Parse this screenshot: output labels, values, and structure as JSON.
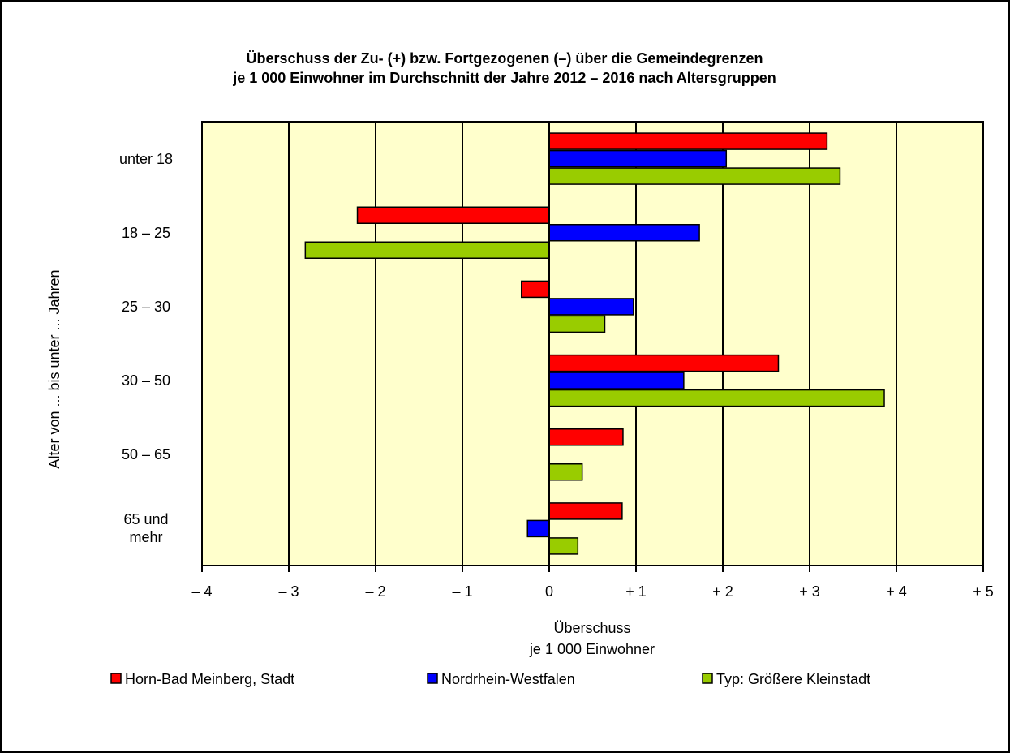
{
  "chart_data": {
    "type": "bar",
    "orientation": "horizontal",
    "title": [
      "Überschuss der Zu- (+) bzw. Fortgezogenen (–) über die Gemeindegrenzen",
      "je 1 000 Einwohner im Durchschnitt der Jahre 2012 – 2016 nach Altersgruppen"
    ],
    "x_label": [
      "Überschuss",
      "je 1 000 Einwohner"
    ],
    "y_label": "Alter von ... bis unter ... Jahren",
    "categories": [
      "unter 18",
      "18 – 25",
      "25 – 30",
      "30 – 50",
      "50 – 65",
      "65 und mehr"
    ],
    "series": [
      {
        "name": "Horn-Bad Meinberg, Stadt",
        "color": "#ff0000",
        "values": [
          3.2,
          -2.21,
          -0.32,
          2.64,
          0.85,
          0.84
        ]
      },
      {
        "name": "Nordrhein-Westfalen",
        "color": "#0000ff",
        "values": [
          2.04,
          1.73,
          0.97,
          1.55,
          0.0,
          -0.25
        ]
      },
      {
        "name": "Typ: Größere Kleinstadt",
        "color": "#99cc00",
        "values": [
          3.35,
          -2.81,
          0.64,
          3.86,
          0.38,
          0.33
        ]
      }
    ],
    "xlim": [
      -4,
      5
    ],
    "xticks": [
      {
        "value": -4,
        "label": "– 4"
      },
      {
        "value": -3,
        "label": "– 3"
      },
      {
        "value": -2,
        "label": "– 2"
      },
      {
        "value": -1,
        "label": "– 1"
      },
      0,
      {
        "value": 1,
        "label": "+ 1"
      },
      {
        "value": 2,
        "label": "+ 2"
      },
      {
        "value": 3,
        "label": "+ 3"
      },
      {
        "value": 4,
        "label": "+ 4"
      },
      {
        "value": 5,
        "label": "+ 5"
      }
    ],
    "grid": true,
    "background": "#ffffcc",
    "legend": "bottom"
  }
}
